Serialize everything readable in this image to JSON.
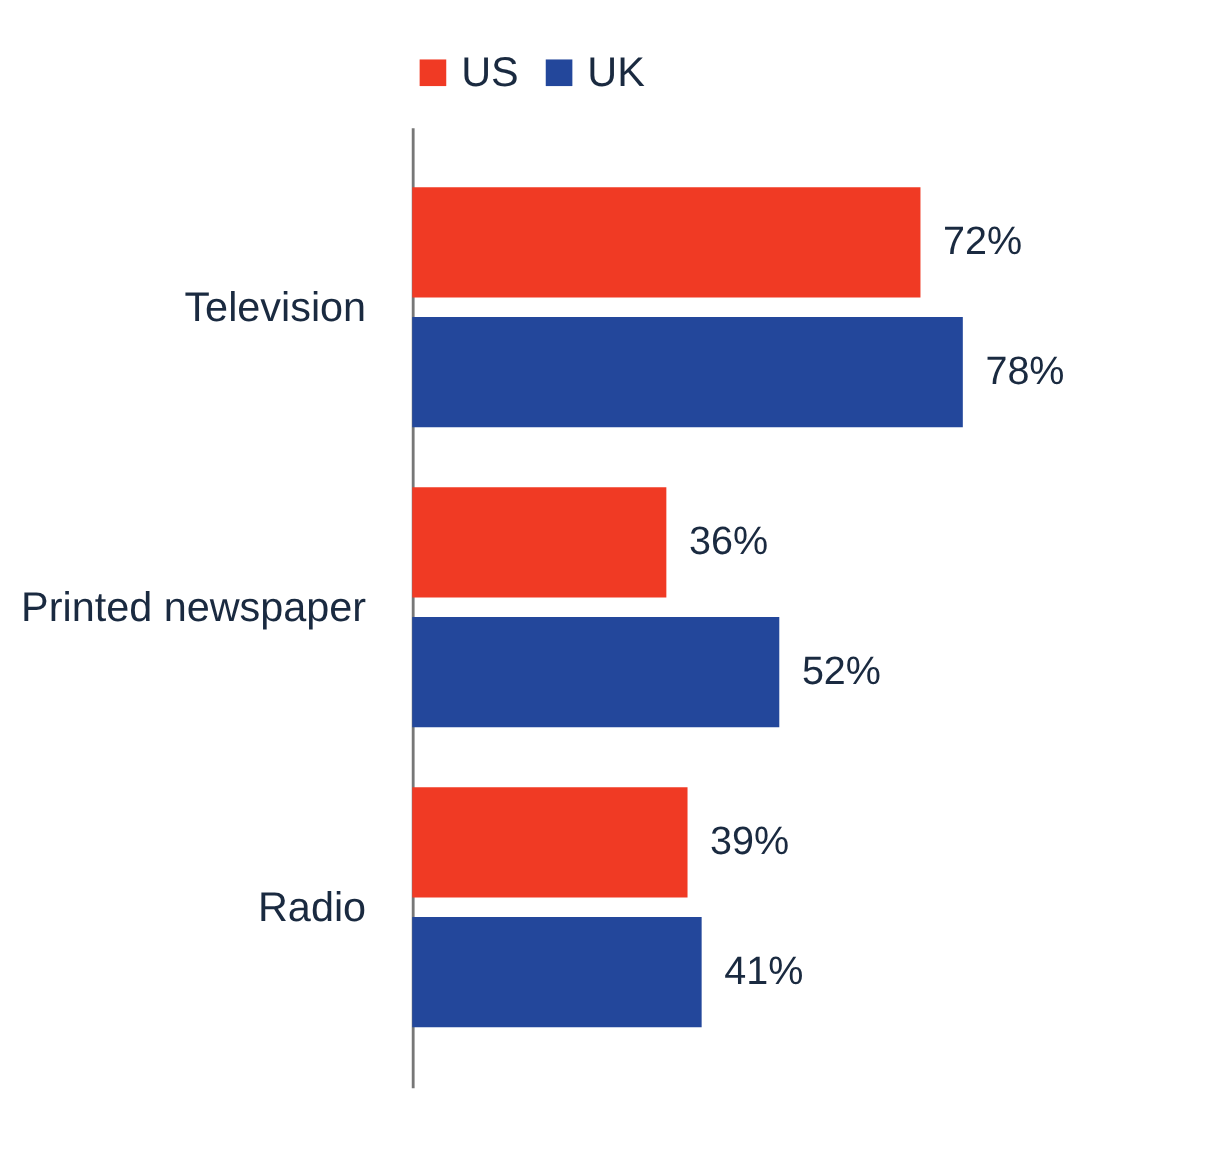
{
  "chart_data": {
    "type": "bar",
    "orientation": "horizontal",
    "categories": [
      "Television",
      "Printed newspaper",
      "Radio"
    ],
    "series": [
      {
        "name": "US",
        "color": "#f03a24",
        "values": [
          72,
          36,
          39
        ],
        "value_labels": [
          "72%",
          "36%",
          "39%"
        ]
      },
      {
        "name": "UK",
        "color": "#23479b",
        "values": [
          78,
          52,
          41
        ],
        "value_labels": [
          "78%",
          "52%",
          "41%"
        ]
      }
    ],
    "legend": "top",
    "grid": false
  }
}
